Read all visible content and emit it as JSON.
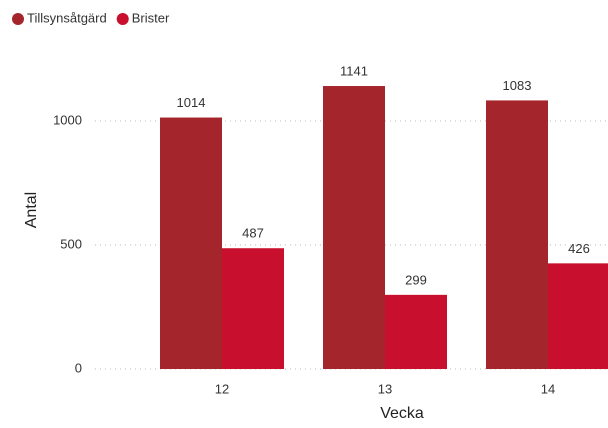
{
  "chart_data": {
    "type": "bar",
    "x_label": "Vecka",
    "y_label": "Antal",
    "categories": [
      "12",
      "13",
      "14"
    ],
    "series": [
      {
        "name": "Tillsynsåtgärd",
        "color": "#a4262c",
        "values": [
          1014,
          1141,
          1083
        ]
      },
      {
        "name": "Brister",
        "color": "#c8102e",
        "values": [
          487,
          299,
          426
        ]
      }
    ],
    "ylim": [
      0,
      1400
    ],
    "yticks": [
      0,
      500,
      1000
    ],
    "grid": true,
    "legend": "top-left"
  }
}
